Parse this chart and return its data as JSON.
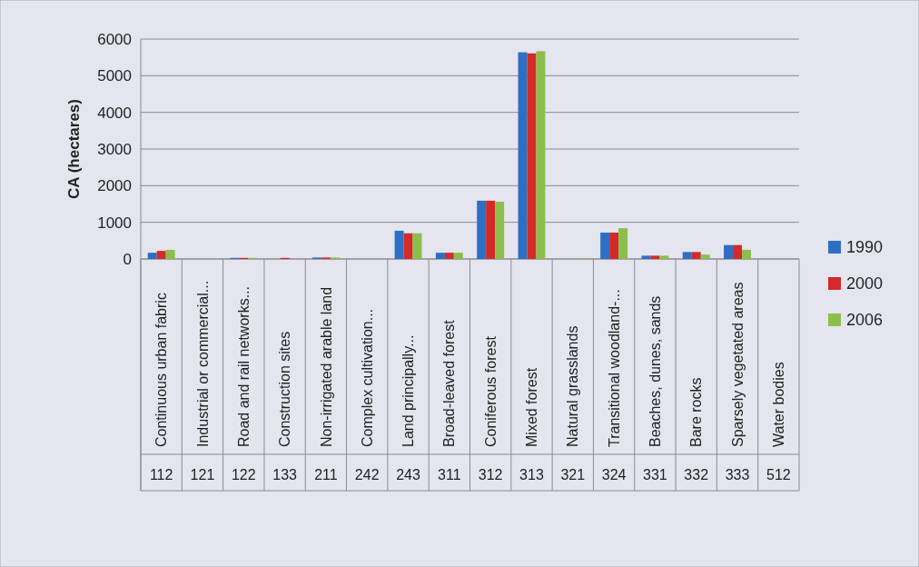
{
  "chart_data": {
    "type": "bar",
    "ylabel": "CA (hectares)",
    "categories": [
      "Continuous urban fabric",
      "Industrial or commercial...",
      "Road and rail networks...",
      "Construction sites",
      "Non-irrigated arable land",
      "Complex cultivation...",
      "Land principally...",
      "Broad-leaved forest",
      "Coniferous forest",
      "Mixed forest",
      "Natural grasslands",
      "Transitional woodland-...",
      "Beaches, dunes, sands",
      "Bare rocks",
      "Sparsely vegetated areas",
      "Water bodies"
    ],
    "series": [
      {
        "name": "1990",
        "color": "#2e6fc4",
        "values": [
          170,
          0,
          30,
          0,
          40,
          0,
          770,
          170,
          1590,
          5640,
          0,
          720,
          90,
          190,
          380,
          0
        ]
      },
      {
        "name": "2000",
        "color": "#d42a2a",
        "values": [
          220,
          0,
          30,
          30,
          40,
          0,
          700,
          170,
          1590,
          5610,
          0,
          720,
          90,
          190,
          380,
          0
        ]
      },
      {
        "name": "2006",
        "color": "#8cbf4a",
        "values": [
          250,
          0,
          30,
          0,
          40,
          0,
          700,
          170,
          1560,
          5670,
          20,
          840,
          90,
          120,
          250,
          0
        ]
      }
    ],
    "ylim": [
      0,
      6000
    ],
    "yticks": [
      0,
      1000,
      2000,
      3000,
      4000,
      5000,
      6000
    ],
    "grid": "y",
    "legend": "right",
    "annotations": [
      "112",
      "121",
      "122",
      "133",
      "211",
      "242",
      "243",
      "311",
      "312",
      "313",
      "321",
      "324",
      "331",
      "332",
      "333",
      "512"
    ]
  }
}
